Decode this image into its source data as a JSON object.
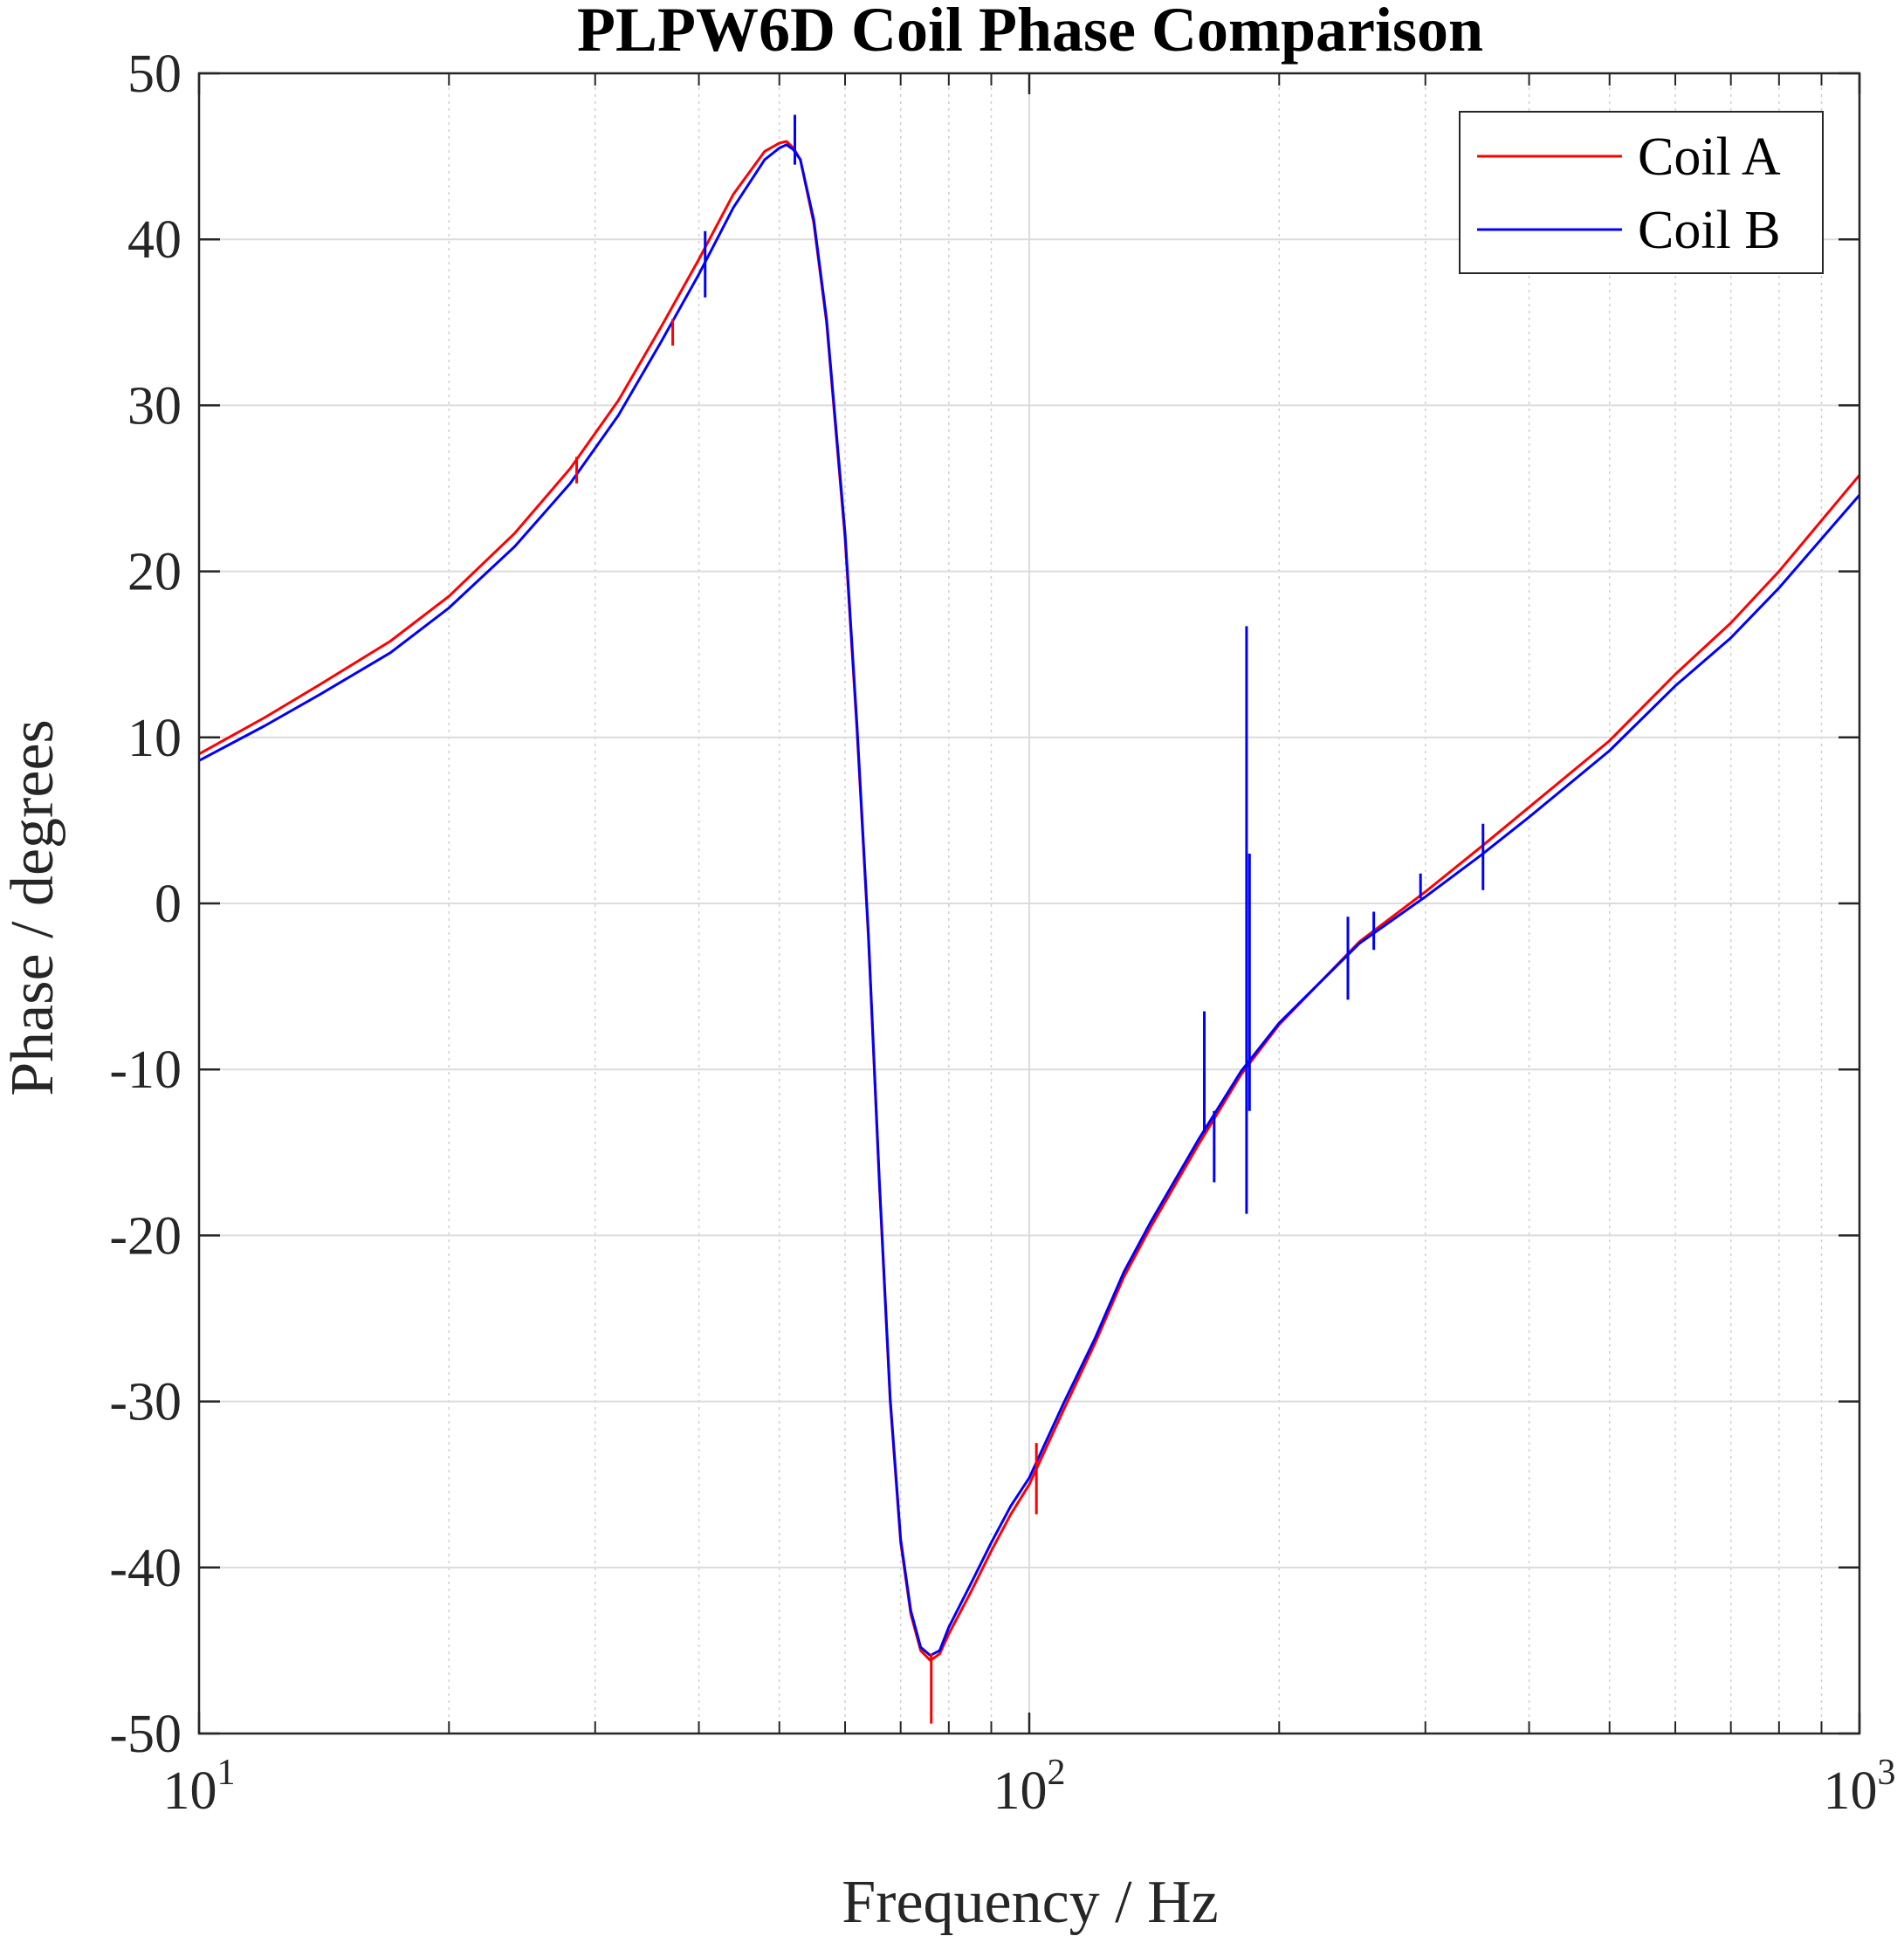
{
  "chart_data": {
    "type": "line",
    "title": "PLPW6D Coil Phase Comparison",
    "xlabel": "Frequency / Hz",
    "ylabel": "Phase / degrees",
    "xscale": "log",
    "xlim": [
      10,
      1000
    ],
    "ylim": [
      -50,
      50
    ],
    "x_ticks": [
      {
        "value": 10,
        "base": "10",
        "exp": "1"
      },
      {
        "value": 100,
        "base": "10",
        "exp": "2"
      },
      {
        "value": 1000,
        "base": "10",
        "exp": "3"
      }
    ],
    "y_ticks": [
      -50,
      -40,
      -30,
      -20,
      -10,
      0,
      10,
      20,
      30,
      40,
      50
    ],
    "grid": true,
    "legend_position": "top-right",
    "series": [
      {
        "name": "Coil A",
        "color": "#ff0000",
        "x": [
          10,
          12,
          14,
          17,
          20,
          24,
          28,
          32,
          36,
          40,
          44,
          48,
          50,
          51,
          52,
          53,
          55,
          57,
          60,
          62,
          64,
          66,
          68,
          70,
          72,
          74,
          76,
          78,
          80,
          85,
          90,
          95,
          100,
          110,
          120,
          130,
          140,
          160,
          180,
          200,
          250,
          300,
          350,
          400,
          500,
          600,
          700,
          800,
          1000
        ],
        "y": [
          9.0,
          11.2,
          13.2,
          15.8,
          18.5,
          22.3,
          26.2,
          30.3,
          34.7,
          38.8,
          42.7,
          45.3,
          45.8,
          45.9,
          45.5,
          44.8,
          41.0,
          35.0,
          22.0,
          10.5,
          -2.0,
          -17.0,
          -30.0,
          -38.5,
          -42.8,
          -45.0,
          -45.6,
          -45.2,
          -44.0,
          -41.5,
          -39.0,
          -36.8,
          -35.0,
          -30.5,
          -26.5,
          -22.5,
          -19.5,
          -14.5,
          -10.3,
          -7.3,
          -2.3,
          0.7,
          3.4,
          5.8,
          9.8,
          13.8,
          16.9,
          20.0,
          25.8
        ]
      },
      {
        "name": "Coil B",
        "color": "#0000ff",
        "x": [
          10,
          12,
          14,
          17,
          20,
          24,
          28,
          32,
          36,
          40,
          44,
          48,
          50,
          51,
          52,
          53,
          55,
          57,
          60,
          62,
          64,
          66,
          68,
          70,
          72,
          74,
          76,
          78,
          80,
          85,
          90,
          95,
          100,
          110,
          120,
          130,
          140,
          160,
          180,
          200,
          250,
          300,
          350,
          400,
          500,
          600,
          700,
          800,
          1000
        ],
        "y": [
          8.6,
          10.7,
          12.6,
          15.1,
          17.8,
          21.5,
          25.3,
          29.4,
          33.8,
          37.9,
          41.9,
          44.8,
          45.5,
          45.7,
          45.4,
          44.8,
          41.2,
          35.2,
          22.3,
          10.8,
          -1.8,
          -16.8,
          -29.8,
          -38.3,
          -42.6,
          -44.8,
          -45.3,
          -45.0,
          -43.6,
          -41.0,
          -38.5,
          -36.3,
          -34.6,
          -30.1,
          -26.2,
          -22.2,
          -19.2,
          -14.2,
          -10.1,
          -7.2,
          -2.4,
          0.4,
          2.9,
          5.2,
          9.2,
          13.1,
          16.0,
          19.0,
          24.6
        ]
      }
    ],
    "spikes": [
      {
        "series": "Coil A",
        "x": 28.5,
        "y0": 25.3,
        "y1": 26.9
      },
      {
        "series": "Coil A",
        "x": 37.2,
        "y0": 33.6,
        "y1": 35.2
      },
      {
        "series": "Coil A",
        "x": 76.2,
        "y0": -49.4,
        "y1": -45.2
      },
      {
        "series": "Coil A",
        "x": 102.0,
        "y0": -36.8,
        "y1": -32.5
      },
      {
        "series": "Coil B",
        "x": 40.7,
        "y0": 36.5,
        "y1": 40.5
      },
      {
        "series": "Coil B",
        "x": 52.2,
        "y0": 44.5,
        "y1": 47.5
      },
      {
        "series": "Coil B",
        "x": 162.5,
        "y0": -13.8,
        "y1": -6.5
      },
      {
        "series": "Coil B",
        "x": 167.0,
        "y0": -16.8,
        "y1": -12.5
      },
      {
        "series": "Coil B",
        "x": 182.7,
        "y0": -18.7,
        "y1": 16.7
      },
      {
        "series": "Coil B",
        "x": 184.2,
        "y0": -12.5,
        "y1": 3.0
      },
      {
        "series": "Coil B",
        "x": 242.0,
        "y0": -5.8,
        "y1": -0.8
      },
      {
        "series": "Coil B",
        "x": 260.0,
        "y0": -2.8,
        "y1": -0.5
      },
      {
        "series": "Coil B",
        "x": 296.0,
        "y0": 0.3,
        "y1": 1.8
      },
      {
        "series": "Coil B",
        "x": 352.0,
        "y0": 0.8,
        "y1": 4.8
      }
    ]
  }
}
